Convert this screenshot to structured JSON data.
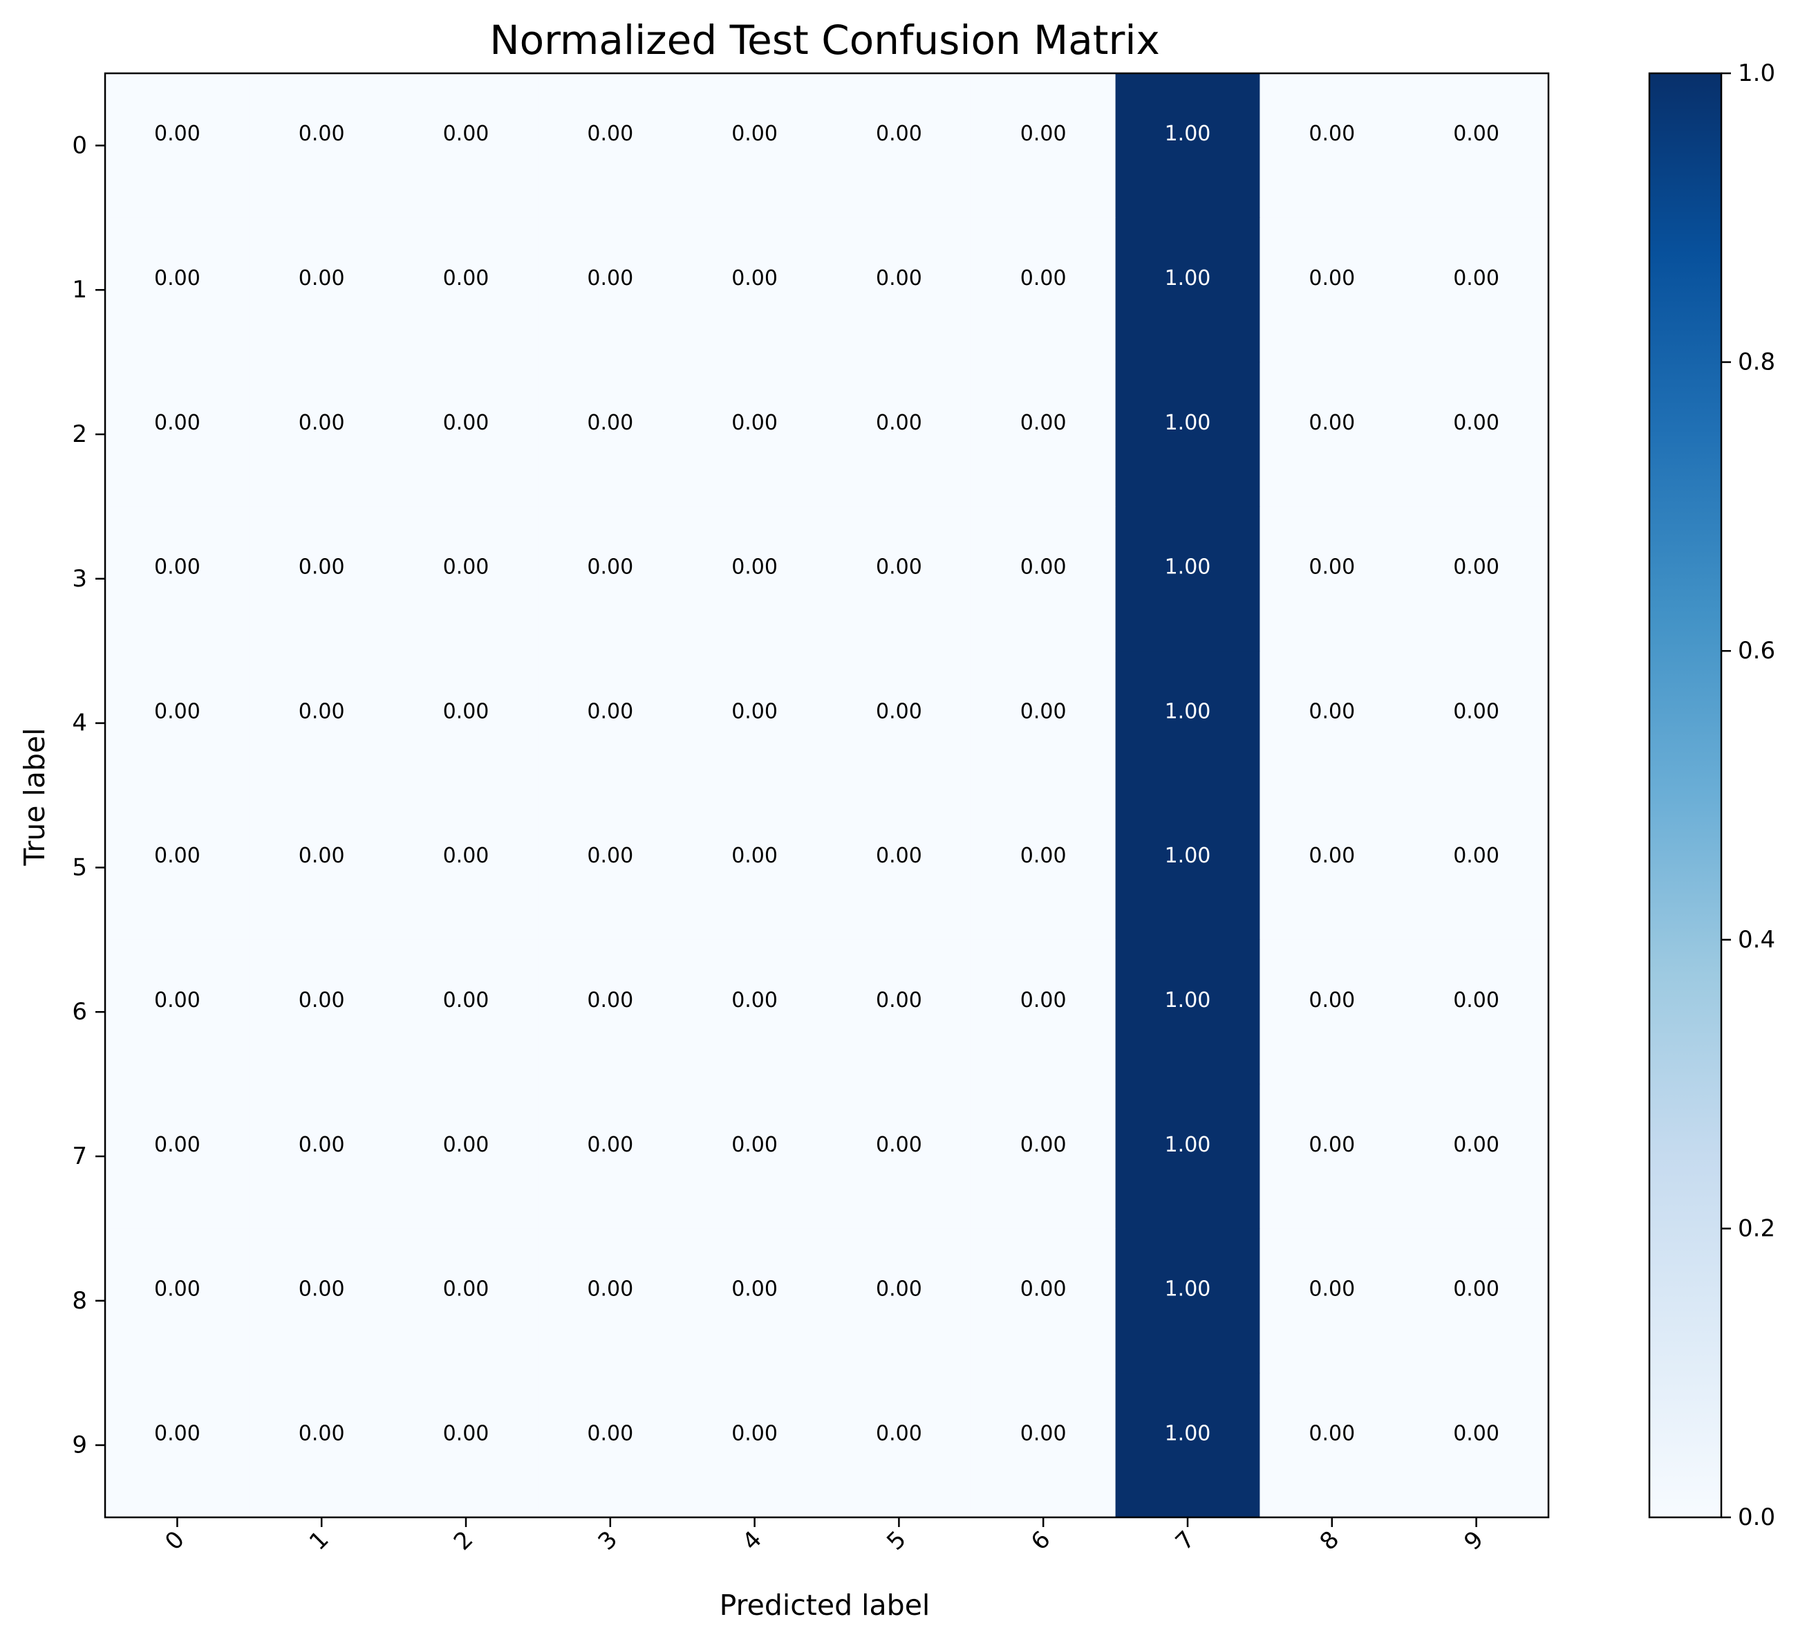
{
  "chart_data": {
    "type": "heatmap",
    "title": "Normalized Test Confusion Matrix",
    "xlabel": "Predicted label",
    "ylabel": "True label",
    "x_categories": [
      "0",
      "1",
      "2",
      "3",
      "4",
      "5",
      "6",
      "7",
      "8",
      "9"
    ],
    "y_categories": [
      "0",
      "1",
      "2",
      "3",
      "4",
      "5",
      "6",
      "7",
      "8",
      "9"
    ],
    "values": [
      [
        0,
        0,
        0,
        0,
        0,
        0,
        0,
        1,
        0,
        0
      ],
      [
        0,
        0,
        0,
        0,
        0,
        0,
        0,
        1,
        0,
        0
      ],
      [
        0,
        0,
        0,
        0,
        0,
        0,
        0,
        1,
        0,
        0
      ],
      [
        0,
        0,
        0,
        0,
        0,
        0,
        0,
        1,
        0,
        0
      ],
      [
        0,
        0,
        0,
        0,
        0,
        0,
        0,
        1,
        0,
        0
      ],
      [
        0,
        0,
        0,
        0,
        0,
        0,
        0,
        1,
        0,
        0
      ],
      [
        0,
        0,
        0,
        0,
        0,
        0,
        0,
        1,
        0,
        0
      ],
      [
        0,
        0,
        0,
        0,
        0,
        0,
        0,
        1,
        0,
        0
      ],
      [
        0,
        0,
        0,
        0,
        0,
        0,
        0,
        1,
        0,
        0
      ],
      [
        0,
        0,
        0,
        0,
        0,
        0,
        0,
        1,
        0,
        0
      ]
    ],
    "value_format_decimals": 2,
    "colormap": "Blues",
    "colormap_stops": [
      "#f7fbff",
      "#deebf7",
      "#c6dbef",
      "#9ecae1",
      "#6baed6",
      "#4292c6",
      "#2171b5",
      "#08519c",
      "#08306b"
    ],
    "colorbar": {
      "range": [
        0.0,
        1.0
      ],
      "ticks": [
        "0.0",
        "0.2",
        "0.4",
        "0.6",
        "0.8",
        "1.0"
      ]
    },
    "xtick_rotation": 45,
    "grid": false,
    "legend": "colorbar-right"
  }
}
